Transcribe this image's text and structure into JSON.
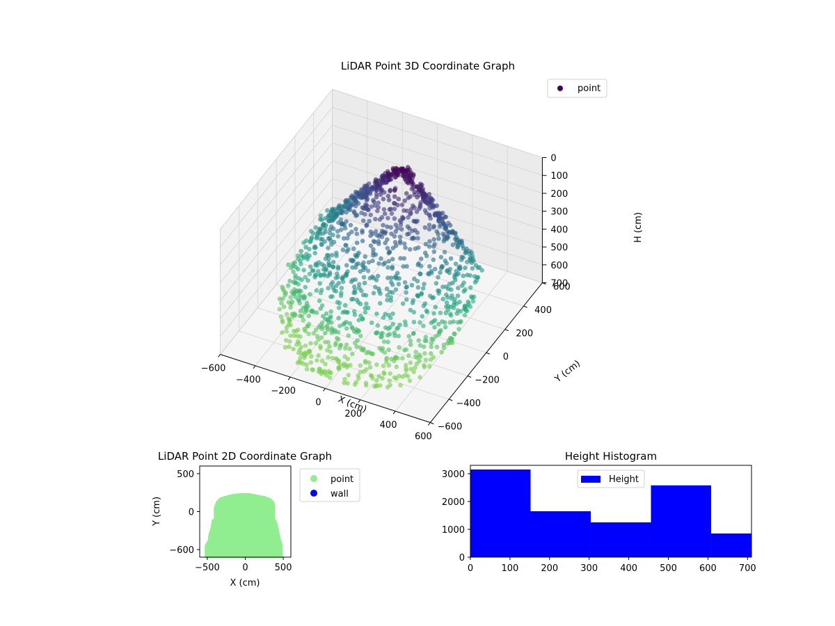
{
  "chart_data": [
    {
      "type": "scatter",
      "title": "LiDAR Point 3D Coordinate Graph",
      "projection": "3d",
      "xlabel": "X (cm)",
      "ylabel": "Y (cm)",
      "zlabel": "H (cm)",
      "xlim": [
        -600,
        600
      ],
      "ylim": [
        -600,
        600
      ],
      "zlim": [
        700,
        0
      ],
      "z_axis_inverted": true,
      "x_ticks": [
        "−600",
        "−400",
        "−200",
        "0",
        "200",
        "400",
        "600"
      ],
      "y_ticks": [
        "−600",
        "−400",
        "−200",
        "0",
        "200",
        "400",
        "600"
      ],
      "z_ticks": [
        "0",
        "100",
        "200",
        "300",
        "400",
        "500",
        "600",
        "700"
      ],
      "legend": [
        "point"
      ],
      "legend_position": "top-right",
      "colormap": "viridis",
      "color_by": "height",
      "grid": true,
      "series": [
        {
          "name": "point",
          "description_values": "dome-shaped point cloud; low points (H near 0) at back, high H near front",
          "sample": {
            "x": [
              -450,
              -300,
              -150,
              0,
              150,
              300,
              450,
              -200,
              0,
              200,
              -350,
              350,
              0,
              -100,
              100
            ],
            "y": [
              -500,
              -450,
              -400,
              -420,
              -400,
              -450,
              -500,
              0,
              150,
              0,
              -200,
              -200,
              220,
              200,
              200
            ],
            "h": [
              680,
              650,
              640,
              700,
              640,
              650,
              660,
              450,
              200,
              450,
              550,
              550,
              20,
              60,
              60
            ]
          }
        }
      ]
    },
    {
      "type": "scatter",
      "title": "LiDAR Point 2D Coordinate Graph",
      "xlabel": "X (cm)",
      "ylabel": "Y (cm)",
      "xlim": [
        -600,
        600
      ],
      "ylim": [
        -600,
        600
      ],
      "x_ticks": [
        "−500",
        "0",
        "500"
      ],
      "y_ticks": [
        "−600",
        "0",
        "500"
      ],
      "legend": [
        "point",
        "wall"
      ],
      "legend_position": "outside-right",
      "grid": false,
      "series": [
        {
          "name": "point",
          "color": "#90ee90",
          "outline": {
            "x": [
              -520,
              -520,
              -480,
              -470,
              -440,
              -430,
              -400,
              -400,
              -370,
              -330,
              -240,
              -150,
              -50,
              0,
              50,
              150,
              260,
              330,
              370,
              380,
              380,
              400,
              420,
              440,
              460,
              480,
              480
            ],
            "y": [
              -600,
              -450,
              -380,
              -300,
              -200,
              -120,
              -100,
              50,
              130,
              170,
              200,
              220,
              230,
              230,
              230,
              210,
              190,
              160,
              120,
              50,
              -100,
              -130,
              -200,
              -300,
              -380,
              -450,
              -600
            ]
          }
        },
        {
          "name": "wall",
          "color": "#0000ff",
          "x": [],
          "y": []
        }
      ]
    },
    {
      "type": "bar",
      "title": "Height Histogram",
      "histogram": true,
      "bin_edges": [
        0,
        152,
        304,
        456,
        608,
        710
      ],
      "values": [
        3150,
        1650,
        1250,
        2580,
        850
      ],
      "series": [
        {
          "name": "Height",
          "color": "#0000ff"
        }
      ],
      "xlim": [
        0,
        710
      ],
      "ylim": [
        0,
        3300
      ],
      "x_ticks": [
        0,
        100,
        200,
        300,
        400,
        500,
        600,
        700
      ],
      "y_ticks": [
        0,
        1000,
        2000,
        3000
      ],
      "legend": [
        "Height"
      ],
      "legend_position": "top-center",
      "grid": false
    }
  ]
}
